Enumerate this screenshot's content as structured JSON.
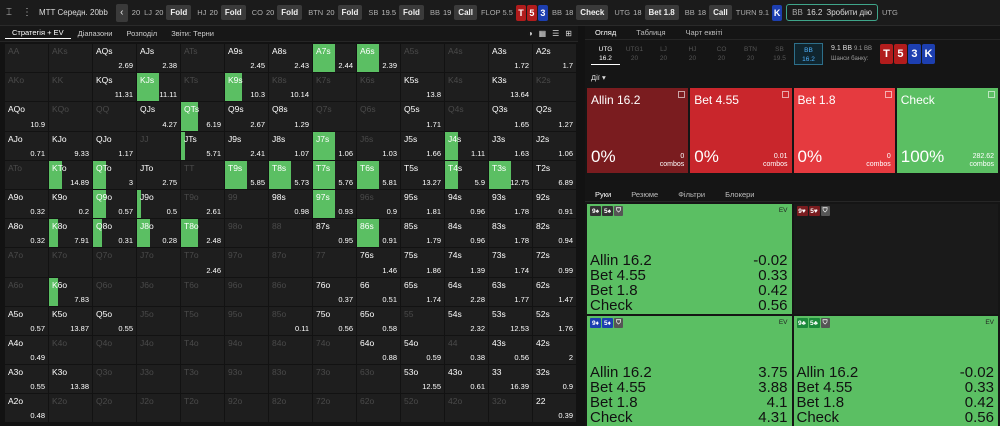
{
  "top": {
    "title": "MTT  Середн. 20bb",
    "seats": [
      {
        "pos": "LJ",
        "stack": "20",
        "act": "Fold"
      },
      {
        "pos": "HJ",
        "stack": "20",
        "act": "Fold"
      },
      {
        "pos": "CO",
        "stack": "20",
        "act": "Fold"
      },
      {
        "pos": "BTN",
        "stack": "20",
        "act": "Fold"
      },
      {
        "pos": "SB",
        "stack": "19.5",
        "act": "Fold"
      },
      {
        "pos": "BB",
        "stack": "19",
        "act": "Call"
      }
    ],
    "flop_label": "FLOP 5.5",
    "flop_cards": [
      {
        "r": "T",
        "c": "#b11c1c"
      },
      {
        "r": "5",
        "c": "#b11c1c"
      },
      {
        "r": "3",
        "c": "#1d3fb0"
      }
    ],
    "seats2": [
      {
        "pos": "BB",
        "stack": "18",
        "act": "Check"
      },
      {
        "pos": "UTG",
        "stack": "18",
        "act": "Bet 1.8"
      },
      {
        "pos": "BB",
        "stack": "18",
        "act": "Call"
      }
    ],
    "utg_first_stack": "20",
    "turn_label": "TURN 9.1",
    "turn_card": "K",
    "action_pos": "BB",
    "action_stack": "16.2",
    "action_button": "Зробити дію",
    "last_pos": "UTG"
  },
  "left": {
    "tabs": [
      "Стратегія + EV",
      "Діапазони",
      "Розподіл",
      "Звіти: Терни"
    ]
  },
  "grid": [
    [
      [
        "AA",
        "",
        0
      ],
      [
        "AKs",
        "",
        0
      ],
      [
        "AQs",
        "2.69",
        1
      ],
      [
        "AJs",
        "2.38",
        1
      ],
      [
        "ATs",
        "",
        0
      ],
      [
        "A9s",
        "2.45",
        1
      ],
      [
        "A8s",
        "2.43",
        1
      ],
      [
        "A7s",
        "2.44",
        0.5
      ],
      [
        "A6s",
        "2.39",
        0.5
      ],
      [
        "A5s",
        "",
        0
      ],
      [
        "A4s",
        "",
        0
      ],
      [
        "A3s",
        "1.72",
        1
      ],
      [
        "A2s",
        "1.7",
        1
      ]
    ],
    [
      [
        "AKo",
        "",
        0
      ],
      [
        "KK",
        "",
        0
      ],
      [
        "KQs",
        "11.31",
        1
      ],
      [
        "KJs",
        "11.11",
        0.5
      ],
      [
        "KTs",
        "",
        0
      ],
      [
        "K9s",
        "10.3",
        0.4
      ],
      [
        "K8s",
        "10.14",
        0
      ],
      [
        "K7s",
        "",
        0
      ],
      [
        "K6s",
        "",
        0
      ],
      [
        "K5s",
        "13.8",
        1
      ],
      [
        "K4s",
        "",
        0
      ],
      [
        "K3s",
        "13.64",
        1
      ],
      [
        "K2s",
        "",
        0
      ]
    ],
    [
      [
        "AQo",
        "10.9",
        1
      ],
      [
        "KQo",
        "",
        0
      ],
      [
        "QQ",
        "",
        0
      ],
      [
        "QJs",
        "4.27",
        1
      ],
      [
        "QTs",
        "6.19",
        0.4
      ],
      [
        "Q9s",
        "2.67",
        1
      ],
      [
        "Q8s",
        "1.29",
        1
      ],
      [
        "Q7s",
        "",
        0
      ],
      [
        "Q6s",
        "",
        0
      ],
      [
        "Q5s",
        "1.71",
        1
      ],
      [
        "Q4s",
        "",
        0
      ],
      [
        "Q3s",
        "1.65",
        1
      ],
      [
        "Q2s",
        "1.27",
        1
      ]
    ],
    [
      [
        "AJo",
        "0.71",
        1
      ],
      [
        "KJo",
        "9.33",
        1
      ],
      [
        "QJo",
        "1.17",
        1
      ],
      [
        "JJ",
        "",
        0
      ],
      [
        "JTs",
        "5.71",
        0.1
      ],
      [
        "J9s",
        "2.41",
        1
      ],
      [
        "J8s",
        "1.07",
        1
      ],
      [
        "J7s",
        "1.06",
        0.5
      ],
      [
        "J6s",
        "1.03",
        0
      ],
      [
        "J5s",
        "1.66",
        1
      ],
      [
        "J4s",
        "1.11",
        0.3
      ],
      [
        "J3s",
        "1.63",
        1
      ],
      [
        "J2s",
        "1.06",
        1
      ]
    ],
    [
      [
        "ATo",
        "",
        0
      ],
      [
        "KTo",
        "14.89",
        0.3
      ],
      [
        "QTo",
        "3",
        0.3
      ],
      [
        "JTo",
        "2.75",
        1
      ],
      [
        "TT",
        "",
        0
      ],
      [
        "T9s",
        "5.85",
        0.5
      ],
      [
        "T8s",
        "5.73",
        0.5
      ],
      [
        "T7s",
        "5.76",
        0.5
      ],
      [
        "T6s",
        "5.81",
        0.5
      ],
      [
        "T5s",
        "13.27",
        1
      ],
      [
        "T4s",
        "5.9",
        0.3
      ],
      [
        "T3s",
        "12.75",
        0.5
      ],
      [
        "T2s",
        "6.89",
        1
      ]
    ],
    [
      [
        "A9o",
        "0.32",
        1
      ],
      [
        "K9o",
        "0.2",
        1
      ],
      [
        "Q9o",
        "0.57",
        0.3
      ],
      [
        "J9o",
        "0.5",
        0.1
      ],
      [
        "T9o",
        "2.61",
        0
      ],
      [
        "99",
        "",
        0
      ],
      [
        "98s",
        "0.98",
        1
      ],
      [
        "97s",
        "0.93",
        0.5
      ],
      [
        "96s",
        "0.9",
        0
      ],
      [
        "95s",
        "1.81",
        1
      ],
      [
        "94s",
        "0.96",
        1
      ],
      [
        "93s",
        "1.78",
        1
      ],
      [
        "92s",
        "0.91",
        1
      ]
    ],
    [
      [
        "A8o",
        "0.32",
        1
      ],
      [
        "K8o",
        "7.91",
        0.2
      ],
      [
        "Q8o",
        "0.31",
        0.2
      ],
      [
        "J8o",
        "0.28",
        0.3
      ],
      [
        "T8o",
        "2.48",
        0.4
      ],
      [
        "98o",
        "",
        0
      ],
      [
        "88",
        "",
        0
      ],
      [
        "87s",
        "0.95",
        1
      ],
      [
        "86s",
        "0.91",
        0.5
      ],
      [
        "85s",
        "1.79",
        1
      ],
      [
        "84s",
        "0.96",
        1
      ],
      [
        "83s",
        "1.78",
        1
      ],
      [
        "82s",
        "0.94",
        1
      ]
    ],
    [
      [
        "A7o",
        "",
        0
      ],
      [
        "K7o",
        "",
        0
      ],
      [
        "Q7o",
        "",
        0
      ],
      [
        "J7o",
        "",
        0
      ],
      [
        "T7o",
        "2.46",
        0
      ],
      [
        "97o",
        "",
        0
      ],
      [
        "87o",
        "",
        0
      ],
      [
        "77",
        "",
        0
      ],
      [
        "76s",
        "1.46",
        1
      ],
      [
        "75s",
        "1.86",
        1
      ],
      [
        "74s",
        "1.39",
        1
      ],
      [
        "73s",
        "1.74",
        1
      ],
      [
        "72s",
        "0.99",
        1
      ]
    ],
    [
      [
        "A6o",
        "",
        0
      ],
      [
        "K6o",
        "7.83",
        0.2
      ],
      [
        "Q6o",
        "",
        0
      ],
      [
        "J6o",
        "",
        0
      ],
      [
        "T6o",
        "",
        0
      ],
      [
        "96o",
        "",
        0
      ],
      [
        "86o",
        "",
        0
      ],
      [
        "76o",
        "0.37",
        1
      ],
      [
        "66",
        "0.51",
        1
      ],
      [
        "65s",
        "1.74",
        1
      ],
      [
        "64s",
        "2.28",
        1
      ],
      [
        "63s",
        "1.77",
        1
      ],
      [
        "62s",
        "1.47",
        1
      ]
    ],
    [
      [
        "A5o",
        "0.57",
        1
      ],
      [
        "K5o",
        "13.87",
        1
      ],
      [
        "Q5o",
        "0.55",
        1
      ],
      [
        "J5o",
        "",
        0
      ],
      [
        "T5o",
        "",
        0
      ],
      [
        "95o",
        "",
        0
      ],
      [
        "85o",
        "0.11",
        0
      ],
      [
        "75o",
        "0.56",
        1
      ],
      [
        "65o",
        "0.58",
        1
      ],
      [
        "55",
        "",
        0
      ],
      [
        "54s",
        "2.32",
        1
      ],
      [
        "53s",
        "12.53",
        1
      ],
      [
        "52s",
        "1.76",
        1
      ]
    ],
    [
      [
        "A4o",
        "0.49",
        1
      ],
      [
        "K4o",
        "",
        0
      ],
      [
        "Q4o",
        "",
        0
      ],
      [
        "J4o",
        "",
        0
      ],
      [
        "T4o",
        "",
        0
      ],
      [
        "94o",
        "",
        0
      ],
      [
        "84o",
        "",
        0
      ],
      [
        "74o",
        "",
        0
      ],
      [
        "64o",
        "0.88",
        1
      ],
      [
        "54o",
        "0.59",
        1
      ],
      [
        "44",
        "0.38",
        0
      ],
      [
        "43s",
        "0.56",
        1
      ],
      [
        "42s",
        "2",
        1
      ]
    ],
    [
      [
        "A3o",
        "0.55",
        1
      ],
      [
        "K3o",
        "13.38",
        1
      ],
      [
        "Q3o",
        "",
        0
      ],
      [
        "J3o",
        "",
        0
      ],
      [
        "T3o",
        "",
        0
      ],
      [
        "93o",
        "",
        0
      ],
      [
        "83o",
        "",
        0
      ],
      [
        "73o",
        "",
        0
      ],
      [
        "63o",
        "",
        0
      ],
      [
        "53o",
        "12.55",
        1
      ],
      [
        "43o",
        "0.61",
        1
      ],
      [
        "33",
        "16.39",
        1
      ],
      [
        "32s",
        "0.9",
        1
      ]
    ],
    [
      [
        "A2o",
        "0.48",
        1
      ],
      [
        "K2o",
        "",
        0
      ],
      [
        "Q2o",
        "",
        0
      ],
      [
        "J2o",
        "",
        0
      ],
      [
        "T2o",
        "",
        0
      ],
      [
        "92o",
        "",
        0
      ],
      [
        "82o",
        "",
        0
      ],
      [
        "72o",
        "",
        0
      ],
      [
        "62o",
        "",
        0
      ],
      [
        "52o",
        "",
        0
      ],
      [
        "42o",
        "",
        0
      ],
      [
        "32o",
        "",
        0
      ],
      [
        "22",
        "0.39",
        1
      ]
    ]
  ],
  "right": {
    "tabs": [
      "Огляд",
      "Таблиця",
      "Чарт еквіті"
    ],
    "seats": [
      [
        "UTG",
        "16.2"
      ],
      [
        "UTG1",
        "20"
      ],
      [
        "LJ",
        "20"
      ],
      [
        "HJ",
        "20"
      ],
      [
        "CO",
        "20"
      ],
      [
        "BTN",
        "20"
      ],
      [
        "SB",
        "19.5"
      ],
      [
        "BB",
        "16.2"
      ]
    ],
    "pot": "9.1 BB",
    "pot_b": "9.1 BB",
    "pot_label": "Шанси банку:",
    "board": [
      {
        "r": "T",
        "c": "#b11c1c"
      },
      {
        "r": "5",
        "c": "#b11c1c"
      },
      {
        "r": "3",
        "c": "#1d3fb0"
      },
      {
        "r": "K",
        "c": "#1d3fb0"
      }
    ],
    "actions_label": "Дії",
    "strategies": [
      {
        "label": "Allin 16.2",
        "pct": "0%",
        "combos": "0",
        "combos_label": "combos",
        "color": "#7a1c1f"
      },
      {
        "label": "Bet 4.55",
        "pct": "0%",
        "combos": "0.01",
        "combos_label": "combos",
        "color": "#c9262c"
      },
      {
        "label": "Bet 1.8",
        "pct": "0%",
        "combos": "0",
        "combos_label": "combos",
        "color": "#e53a3f"
      },
      {
        "label": "Check",
        "pct": "100%",
        "combos": "282.62",
        "combos_label": "combos",
        "color": "#5bbf63"
      }
    ],
    "subtabs": [
      "Руки",
      "Резюме",
      "Фільтри",
      "Блокери"
    ],
    "cards": [
      {
        "c1": "9",
        "s1": "♠",
        "bg1": "#333",
        "c2": "5",
        "s2": "♠",
        "bg2": "#333",
        "ev": "EV",
        "rows": [
          [
            "Allin 16.2",
            "-0.02"
          ],
          [
            "Bet 4.55",
            "0.33"
          ],
          [
            "Bet 1.8",
            "0.42"
          ],
          [
            "Check",
            "0.56"
          ]
        ]
      },
      {
        "c1": "9",
        "s1": "♥",
        "bg1": "#7a1c1f",
        "c2": "5",
        "s2": "♥",
        "bg2": "#7a1c1f",
        "ev": "",
        "rows": []
      },
      {
        "c1": "9",
        "s1": "♦",
        "bg1": "#1d3fb0",
        "c2": "5",
        "s2": "♦",
        "bg2": "#1d3fb0",
        "ev": "EV",
        "rows": [
          [
            "Allin 16.2",
            "3.75"
          ],
          [
            "Bet 4.55",
            "3.88"
          ],
          [
            "Bet 1.8",
            "4.1"
          ],
          [
            "Check",
            "4.31"
          ]
        ]
      },
      {
        "c1": "9",
        "s1": "♣",
        "bg1": "#1c8a3a",
        "c2": "5",
        "s2": "♣",
        "bg2": "#1c8a3a",
        "ev": "EV",
        "rows": [
          [
            "Allin 16.2",
            "-0.02"
          ],
          [
            "Bet 4.55",
            "0.33"
          ],
          [
            "Bet 1.8",
            "0.42"
          ],
          [
            "Check",
            "0.56"
          ]
        ]
      }
    ]
  }
}
